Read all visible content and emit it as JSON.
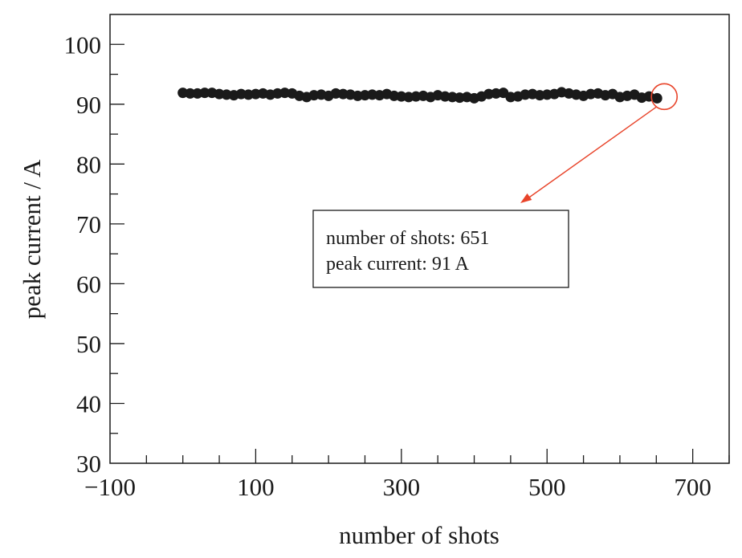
{
  "chart_data": {
    "type": "scatter",
    "xlabel": "number of shots",
    "ylabel": "peak current / A",
    "xlim": [
      -100,
      750
    ],
    "ylim": [
      30,
      105
    ],
    "xticks": [
      -100,
      100,
      300,
      500,
      700
    ],
    "xtick_labels": [
      "−100",
      "100",
      "300",
      "500",
      "700"
    ],
    "yticks": [
      30,
      40,
      50,
      60,
      70,
      80,
      90,
      100
    ],
    "ytick_labels": [
      "30",
      "40",
      "50",
      "60",
      "70",
      "80",
      "90",
      "100"
    ],
    "grid": false,
    "series": [
      {
        "name": "peak current",
        "color": "#1a1a1a",
        "x": [
          0,
          10,
          20,
          30,
          40,
          50,
          60,
          70,
          80,
          90,
          100,
          110,
          120,
          130,
          140,
          150,
          160,
          170,
          180,
          190,
          200,
          210,
          220,
          230,
          240,
          250,
          260,
          270,
          280,
          290,
          300,
          310,
          320,
          330,
          340,
          350,
          360,
          370,
          380,
          390,
          400,
          410,
          420,
          430,
          440,
          450,
          460,
          470,
          480,
          490,
          500,
          510,
          520,
          530,
          540,
          550,
          560,
          570,
          580,
          590,
          600,
          610,
          620,
          630,
          640,
          651
        ],
        "y": [
          91.9,
          91.8,
          91.8,
          91.9,
          91.9,
          91.7,
          91.6,
          91.5,
          91.7,
          91.6,
          91.7,
          91.8,
          91.6,
          91.8,
          91.9,
          91.8,
          91.4,
          91.2,
          91.5,
          91.6,
          91.4,
          91.8,
          91.7,
          91.6,
          91.4,
          91.5,
          91.6,
          91.5,
          91.7,
          91.4,
          91.3,
          91.2,
          91.3,
          91.4,
          91.2,
          91.5,
          91.3,
          91.2,
          91.1,
          91.2,
          91.0,
          91.3,
          91.7,
          91.8,
          91.9,
          91.2,
          91.3,
          91.6,
          91.7,
          91.5,
          91.6,
          91.7,
          92.0,
          91.8,
          91.6,
          91.4,
          91.7,
          91.8,
          91.5,
          91.7,
          91.2,
          91.4,
          91.6,
          91.1,
          91.3,
          91.0
        ]
      }
    ],
    "annotation": {
      "lines": [
        "number of shots: 651",
        "peak current: 91 A"
      ],
      "highlight_point": [
        651,
        91
      ],
      "color": "#e8442a"
    }
  }
}
